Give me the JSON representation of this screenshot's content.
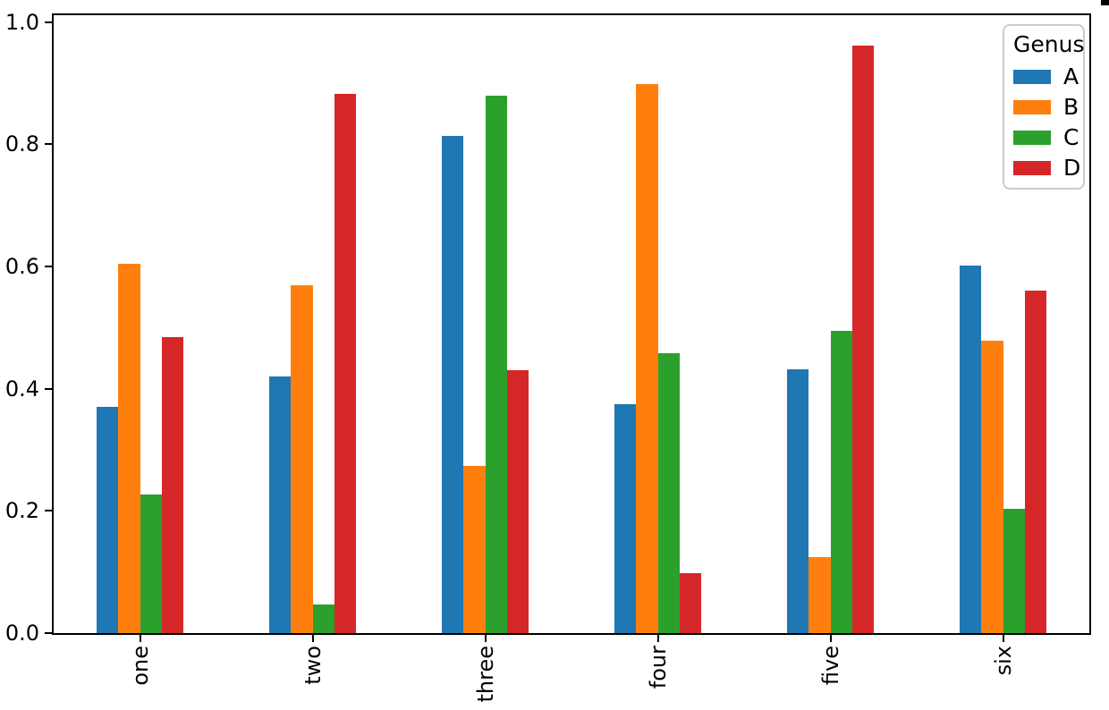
{
  "figure": {
    "background": "#ffffff"
  },
  "chart_data": {
    "type": "bar",
    "title": "",
    "xlabel": "",
    "ylabel": "",
    "categories": [
      "one",
      "two",
      "three",
      "four",
      "five",
      "six"
    ],
    "series": [
      {
        "name": "A",
        "color": "#1f77b4",
        "values": [
          0.37,
          0.42,
          0.813,
          0.374,
          0.432,
          0.601
        ]
      },
      {
        "name": "B",
        "color": "#ff7f0e",
        "values": [
          0.604,
          0.569,
          0.273,
          0.898,
          0.124,
          0.478
        ]
      },
      {
        "name": "C",
        "color": "#2ca02c",
        "values": [
          0.227,
          0.047,
          0.88,
          0.458,
          0.494,
          0.203
        ]
      },
      {
        "name": "D",
        "color": "#d62728",
        "values": [
          0.485,
          0.882,
          0.43,
          0.098,
          0.961,
          0.56
        ]
      }
    ],
    "y_axis": {
      "ticks": [
        0.0,
        0.2,
        0.4,
        0.6,
        0.8,
        1.0
      ],
      "tick_labels": [
        "0.0",
        "0.2",
        "0.4",
        "0.6",
        "0.8",
        "1.0"
      ],
      "range": [
        0.0,
        1.011
      ]
    },
    "x_axis": {
      "tick_label_rotation": 90
    },
    "legend": {
      "title": "Genus",
      "position": "upper right",
      "entries": [
        "A",
        "B",
        "C",
        "D"
      ]
    },
    "grid": false,
    "group_width_fraction": 0.5,
    "spine_color": "#000000"
  }
}
